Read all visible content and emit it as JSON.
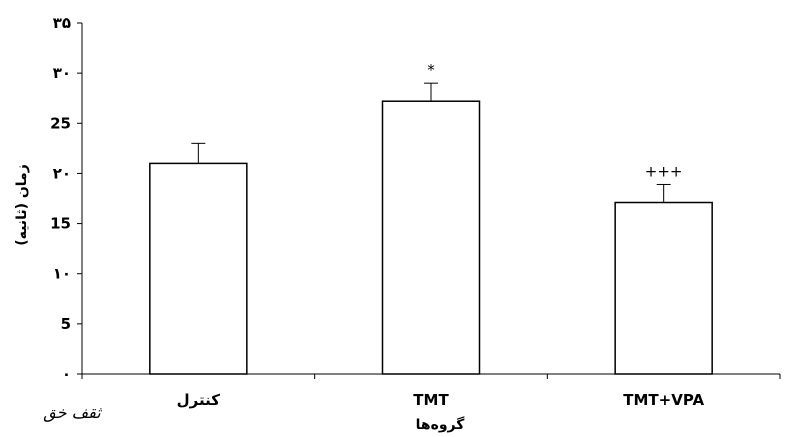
{
  "chart_data": {
    "type": "bar",
    "categories": [
      "کنترل",
      "TMT",
      "TMT+VPA"
    ],
    "values": [
      21,
      27.2,
      17.1
    ],
    "errors": [
      2,
      1.8,
      1.8
    ],
    "significance": [
      "",
      "*",
      "+++"
    ],
    "xlabel": "گروه‌ها",
    "ylabel": "زمان (ثانیه)",
    "ylim": [
      0,
      35
    ],
    "yticks": [
      0,
      5,
      10,
      15,
      20,
      25,
      30,
      35
    ],
    "ytick_labels": [
      "۰",
      "5",
      "۱۰",
      "15",
      "۲۰",
      "25",
      "۳۰",
      "۳۵"
    ],
    "grid": false,
    "bar_color": "#ffffff",
    "edge_color": "#000000"
  },
  "logo": {
    "text": "ثقف خق"
  }
}
